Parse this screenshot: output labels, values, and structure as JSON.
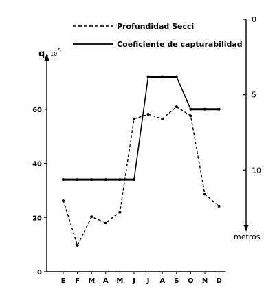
{
  "chart_data": {
    "type": "line",
    "title": "",
    "categories": [
      "E",
      "F",
      "M",
      "A",
      "M",
      "J",
      "J",
      "A",
      "S",
      "O",
      "N",
      "D"
    ],
    "left_axis": {
      "label": "q",
      "label_suffix": ". 10",
      "label_exponent": "5",
      "ylim": [
        0,
        80
      ],
      "ticks": [
        0,
        20,
        40,
        60
      ]
    },
    "right_axis": {
      "label": "metros",
      "ylim": [
        0,
        14
      ],
      "ticks": [
        0,
        5,
        10
      ],
      "inverted": true
    },
    "series": [
      {
        "name": "Profundidad Secci",
        "axis": "right",
        "style": "dashed",
        "values": [
          12.0,
          15.0,
          13.1,
          13.5,
          12.8,
          6.6,
          6.3,
          6.6,
          5.8,
          6.4,
          11.6,
          12.4
        ]
      },
      {
        "name": "Coeficiente de capturabilidad",
        "axis": "left",
        "style": "solid",
        "values": [
          34,
          34,
          34,
          34,
          34,
          34,
          72,
          72,
          72,
          60,
          60,
          60
        ]
      }
    ],
    "grid": false,
    "legend_position": "top"
  }
}
